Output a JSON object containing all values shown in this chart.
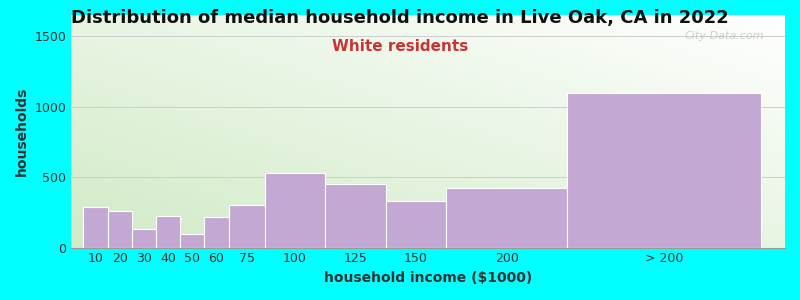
{
  "title": "Distribution of median household income in Live Oak, CA in 2022",
  "subtitle": "White residents",
  "xlabel": "household income ($1000)",
  "ylabel": "households",
  "background_color": "#00FFFF",
  "bar_color": "#C4A8D4",
  "bar_edge_color": "#FFFFFF",
  "categories": [
    "10",
    "20",
    "30",
    "40",
    "50",
    "60",
    "75",
    "100",
    "125",
    "150",
    "200",
    "> 200"
  ],
  "values": [
    290,
    260,
    135,
    225,
    95,
    220,
    300,
    530,
    450,
    330,
    420,
    1095
  ],
  "bar_lefts": [
    0,
    10,
    20,
    30,
    40,
    50,
    60,
    75,
    100,
    125,
    150,
    200
  ],
  "bar_widths": [
    10,
    10,
    10,
    10,
    10,
    10,
    15,
    25,
    25,
    25,
    50,
    80
  ],
  "ylim": [
    0,
    1650
  ],
  "yticks": [
    0,
    500,
    1000,
    1500
  ],
  "title_fontsize": 13,
  "subtitle_fontsize": 11,
  "subtitle_color": "#CC3333",
  "axis_label_fontsize": 10,
  "tick_fontsize": 9,
  "grid_color": "#CCCCCC",
  "watermark": "City-Data.com",
  "grad_top_color": "#FFFFFF",
  "grad_bottom_left": "#CCDDBB",
  "xtick_positions": [
    5,
    15,
    25,
    35,
    45,
    55,
    67.5,
    87.5,
    112.5,
    137.5,
    175,
    240
  ],
  "xlim": [
    -5,
    290
  ]
}
